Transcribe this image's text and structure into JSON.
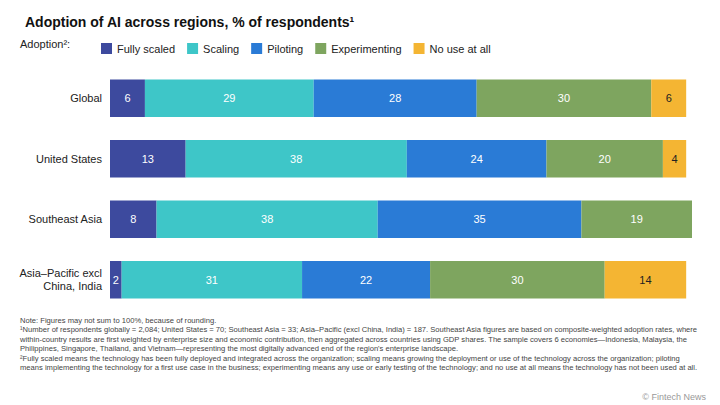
{
  "chart_data": {
    "type": "bar",
    "orientation": "horizontal",
    "stacked": true,
    "data_labels": true,
    "tick_labels": "y",
    "grid": false,
    "legend": "top-left",
    "title": "Adoption of AI across regions, % of respondents¹",
    "legend_title": "Adoption²:",
    "categories": [
      "Global",
      "United States",
      "Southeast Asia",
      "Asia–Pacific excl China, India"
    ],
    "xlim": [
      0,
      100
    ],
    "series": [
      {
        "name": "Fully scaled",
        "color": "#3d4a9e",
        "values": [
          6,
          13,
          8,
          2
        ]
      },
      {
        "name": "Scaling",
        "color": "#3ec6c8",
        "values": [
          29,
          38,
          38,
          31
        ]
      },
      {
        "name": "Piloting",
        "color": "#2a7bd6",
        "values": [
          28,
          24,
          35,
          22
        ]
      },
      {
        "name": "Experimenting",
        "color": "#7ea55f",
        "values": [
          30,
          20,
          19,
          30
        ]
      },
      {
        "name": "No use at all",
        "color": "#f4b533",
        "values": [
          6,
          4,
          null,
          14
        ]
      }
    ],
    "notes": [
      "Note: Figures may not sum to 100%, because of rounding.",
      "¹Number of respondents globally = 2,084; United States = 70; Southeast Asia = 33; Asia–Pacific (excl China, India) = 187. Southeast Asia figures are based on composite-weighted adoption rates, where within-country results are first weighted by enterprise size and economic contribution, then aggregated across countries using GDP shares. The sample covers 6 economies—Indonesia, Malaysia, the Philippines, Singapore, Thailand, and Vietnam—representing the most digitally advanced end of the region's enterprise landscape.",
      "²Fully scaled means the technology has been fully deployed and integrated across the organization; scaling means growing the deployment or use of the technology across the organization; piloting means implementing the technology for a first use case in the business; experimenting means any use or early testing of the technology; and no use at all means the technology has not been used at all."
    ],
    "source": "© Fintech News"
  }
}
